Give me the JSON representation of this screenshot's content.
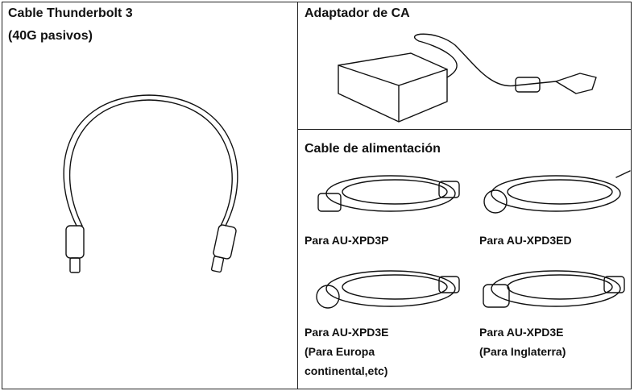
{
  "left": {
    "title_line1": "Cable Thunderbolt 3",
    "title_line2": "(40G pasivos)"
  },
  "adapter": {
    "title": "Adaptador de CA"
  },
  "power_cable": {
    "title": "Cable de alimentación",
    "items": [
      {
        "lines": [
          "Para AU-XPD3P"
        ]
      },
      {
        "lines": [
          "Para AU-XPD3ED"
        ]
      },
      {
        "lines": [
          "Para AU-XPD3E",
          "(Para Europa",
          "continental,etc)"
        ]
      },
      {
        "lines": [
          "Para AU-XPD3E",
          "(Para Inglaterra)"
        ]
      }
    ]
  }
}
